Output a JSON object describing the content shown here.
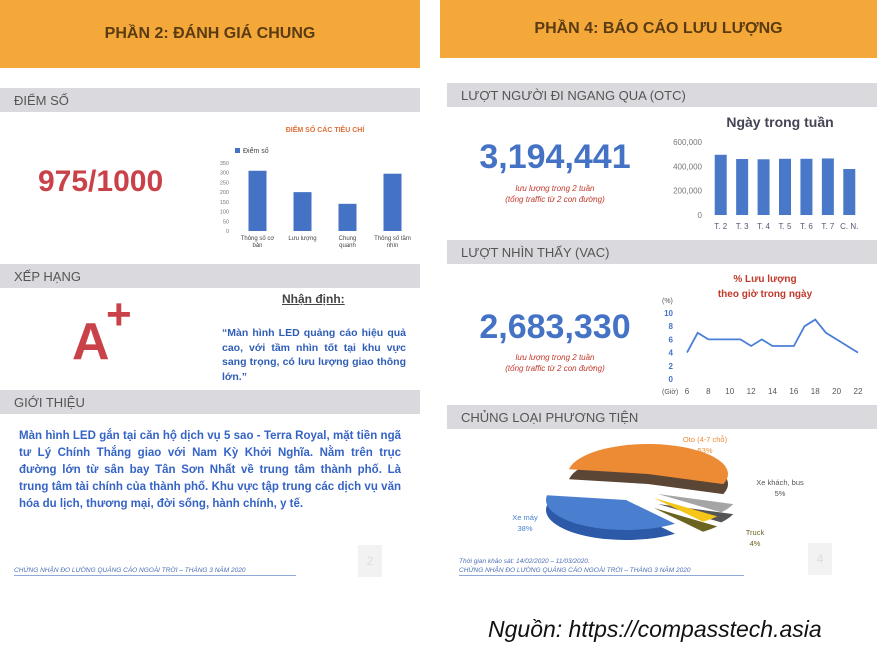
{
  "left": {
    "header": "PHẦN 2: ĐÁNH GIÁ CHUNG",
    "score_section": "ĐIỂM SỐ",
    "score": "975/1000",
    "rank_section": "XẾP HẠNG",
    "rank": "A",
    "rank_plus": "+",
    "assessment_title": "Nhận định:",
    "assessment": "“Màn hình LED quảng cáo hiệu quả cao, với tầm nhìn tốt tại khu vực sang trọng, có lưu lượng giao thông lớn.”",
    "intro_section": "GIỚI THIỆU",
    "intro": "Màn hình LED gắn tại căn hộ dịch vụ 5 sao  - Terra Royal, mặt tiền ngã tư Lý Chính Thắng giao với Nam Kỳ Khởi Nghĩa. Nằm trên trục đường lớn từ sân bay Tân Sơn Nhất về trung tâm thành phố. Là trung tâm tài chính của thành phố. Khu vực tập trung các dịch vụ văn hóa du lịch, thương mại, đời sống, hành chính, y tế.",
    "footer": "CHỨNG NHẬN ĐO LƯỜNG QUẢNG CÁO NGOÀI TRỜI – THÁNG 3 NĂM 2020",
    "page": "2"
  },
  "right": {
    "header": "PHẦN 4: BÁO CÁO LƯU LƯỢNG",
    "otc_section": "LƯỢT NGƯỜI ĐI NGANG QUA (OTC)",
    "otc_value": "3,194,441",
    "otc_note1": "lưu lượng trong 2 tuần",
    "otc_note2": "(tổng traffic từ 2 con đường)",
    "vac_section": "LƯỢT NHÌN THẤY  (VAC)",
    "vac_value": "2,683,330",
    "vac_note1": "lưu lượng trong 2 tuần",
    "vac_note2": "(tổng traffic từ 2 con đường)",
    "vehicle_section": "CHỦNG LOẠI PHƯƠNG TIỆN",
    "survey": "Thời gian khảo sát: 14/02/2020 – 11/03/2020.",
    "footer": "CHỨNG NHẬN ĐO LƯỜNG QUẢNG CÁO NGOÀI TRỜI – THÁNG 3 NĂM 2020",
    "page": "4"
  },
  "source": "Nguồn: https://compasstech.asia",
  "colors": {
    "accent_orange": "#f3a839",
    "bar_blue": "#4472c4",
    "score_red": "#c9424a"
  },
  "chart_data": [
    {
      "type": "bar",
      "title": "ĐIỂM SỐ  CÁC TIÊU CHÍ",
      "legend": "Điểm số",
      "legend_position": "top-left",
      "categories": [
        "Thông số cơ bản",
        "Lưu lượng",
        "Chung quanh",
        "Thông số tầm nhìn"
      ],
      "values": [
        310,
        200,
        140,
        295
      ],
      "ylim": [
        0,
        350
      ],
      "yticks": [
        0,
        50,
        100,
        150,
        200,
        250,
        300,
        350
      ]
    },
    {
      "type": "bar",
      "title": "Ngày trong tuần",
      "categories": [
        "T. 2",
        "T. 3",
        "T. 4",
        "T. 5",
        "T. 6",
        "T. 7",
        "C. N."
      ],
      "values": [
        495000,
        460000,
        458000,
        462000,
        462000,
        465000,
        378000
      ],
      "ylim": [
        0,
        600000
      ],
      "yticks": [
        "0",
        "200,000",
        "400,000",
        "600,000"
      ]
    },
    {
      "type": "line",
      "title": "% Lưu lượng theo giờ trong ngày",
      "title_lines": [
        "% Lưu lượng",
        "theo giờ trong ngày"
      ],
      "ylabel": "(%)",
      "xlabel": "(Giờ)",
      "x": [
        6,
        7,
        8,
        9,
        10,
        11,
        12,
        13,
        14,
        15,
        16,
        17,
        18,
        19,
        20,
        21,
        22
      ],
      "y": [
        4,
        7,
        6,
        6,
        6,
        6,
        5,
        6,
        5,
        5,
        5,
        8,
        9,
        7,
        6,
        5,
        4
      ],
      "xticks": [
        6,
        8,
        10,
        12,
        14,
        16,
        18,
        20,
        22
      ],
      "yticks": [
        0,
        2,
        4,
        6,
        8,
        10
      ],
      "ylim": [
        0,
        10
      ]
    },
    {
      "type": "pie",
      "slices": [
        {
          "label": "Oto (4-7 chỗ)",
          "value": 53,
          "pct": "53%",
          "color": "#ed8b35"
        },
        {
          "label": "Xe khách, bus",
          "value": 5,
          "pct": "5%",
          "color": "#a5a5a5"
        },
        {
          "label": "Truck",
          "value": 4,
          "pct": "4%",
          "color": "#f5c518"
        },
        {
          "label": "Xe máy",
          "value": 38,
          "pct": "38%",
          "color": "#4a7fd0"
        }
      ]
    }
  ]
}
